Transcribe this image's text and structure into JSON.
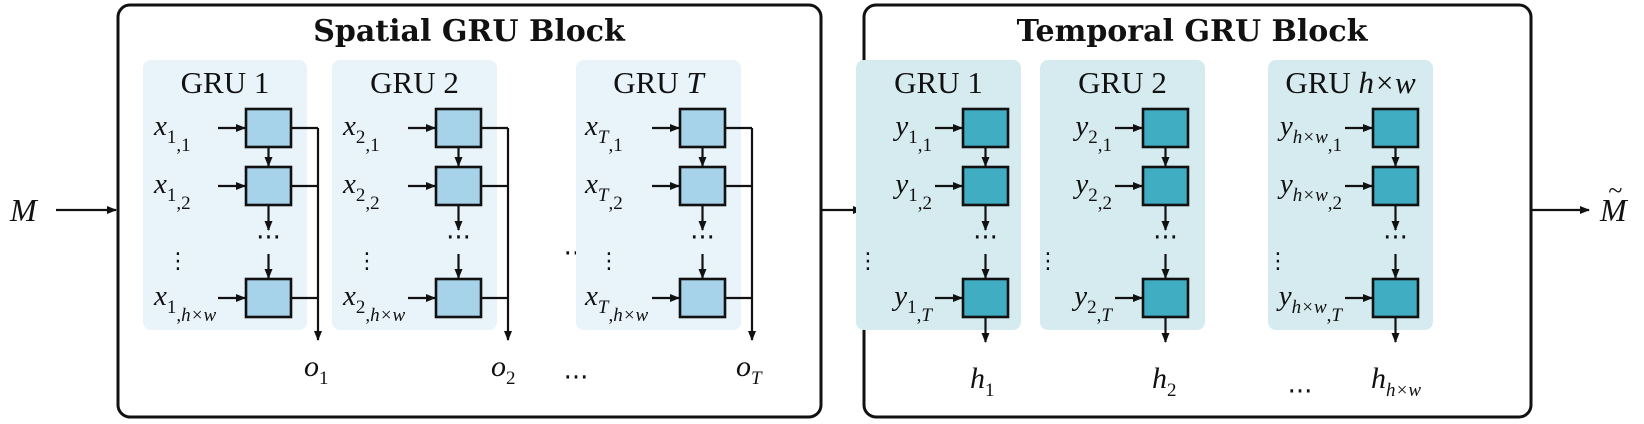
{
  "input_label": "M",
  "output_label": "M",
  "output_accent": "~",
  "ellipsis": "···",
  "vertical_ellipsis": "⋮",
  "spatial": {
    "title": "Spatial GRU Block",
    "groups": [
      {
        "label": "GRU 1",
        "label_var": "",
        "in_sym": "x",
        "inputs": [
          "1,1",
          "1,2",
          "1,h×w"
        ],
        "out_sym": "o",
        "out_sub": "1"
      },
      {
        "label": "GRU 2",
        "label_var": "",
        "in_sym": "x",
        "inputs": [
          "2,1",
          "2,2",
          "2,h×w"
        ],
        "out_sym": "o",
        "out_sub": "2"
      },
      {
        "label": "GRU ",
        "label_var": "T",
        "in_sym": "x",
        "inputs": [
          "T,1",
          "T,2",
          "T,h×w"
        ],
        "out_sym": "o",
        "out_sub": "T"
      }
    ]
  },
  "temporal": {
    "title": "Temporal GRU Block",
    "groups": [
      {
        "label": "GRU 1",
        "label_var": "",
        "in_sym": "y",
        "inputs": [
          "1,1",
          "1,2",
          "1,T"
        ],
        "out_sym": "h",
        "out_sub": "1"
      },
      {
        "label": "GRU 2",
        "label_var": "",
        "in_sym": "y",
        "inputs": [
          "2,1",
          "2,2",
          "2,T"
        ],
        "out_sym": "h",
        "out_sub": "2"
      },
      {
        "label": "GRU ",
        "label_var": "h×w",
        "in_sym": "y",
        "inputs": [
          "h×w,1",
          "h×w,2",
          "h×w,T"
        ],
        "out_sym": "h",
        "out_sub": "h×w"
      }
    ]
  },
  "colors": {
    "spatial_bg": "#e8f3fa",
    "spatial_box": "#a7d3ea",
    "temporal_bg": "#d5ebf0",
    "temporal_box": "#40adc3"
  }
}
